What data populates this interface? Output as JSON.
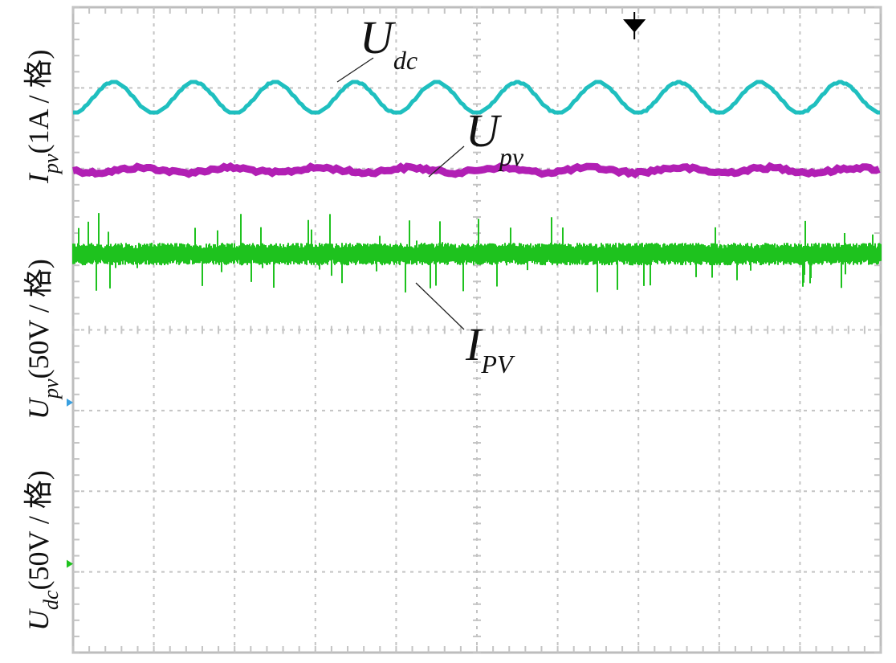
{
  "chart_data": {
    "type": "line",
    "title": "",
    "xlabel": "",
    "grid": true,
    "grid_divisions": {
      "x": 10,
      "y": 8
    },
    "y_labels": [
      {
        "main": "I",
        "sub": "pv",
        "rest": "(1A / 格)"
      },
      {
        "main": "U",
        "sub": "pv",
        "rest": "(50V / 格)"
      },
      {
        "main": "U",
        "sub": "dc",
        "rest": "(50V / 格)"
      }
    ],
    "series": [
      {
        "name": "Udc",
        "label_main": "U",
        "label_sub": "dc",
        "color": "#1fbfbf",
        "shape": "sinusoid",
        "center_div": 1.12,
        "amplitude_div": 0.19,
        "cycles": 10
      },
      {
        "name": "Upv",
        "label_main": "U",
        "label_sub": "pv",
        "color": "#b11fb4",
        "shape": "flat-ripple",
        "center_div": 2.02,
        "ripple_div": 0.05
      },
      {
        "name": "IPV",
        "label_main": "I",
        "label_sub": "PV",
        "color": "#1ec21e",
        "shape": "noise",
        "center_div": 3.06,
        "noise_div": 0.2
      }
    ],
    "channel_markers": [
      {
        "channel": "Upv",
        "color": "#3aa0e0",
        "div": 4.9
      },
      {
        "channel": "Udc",
        "color": "#1ec21e",
        "div": 6.9
      }
    ],
    "trigger_marker": {
      "color": "#000000",
      "x_div": 6.95
    }
  }
}
